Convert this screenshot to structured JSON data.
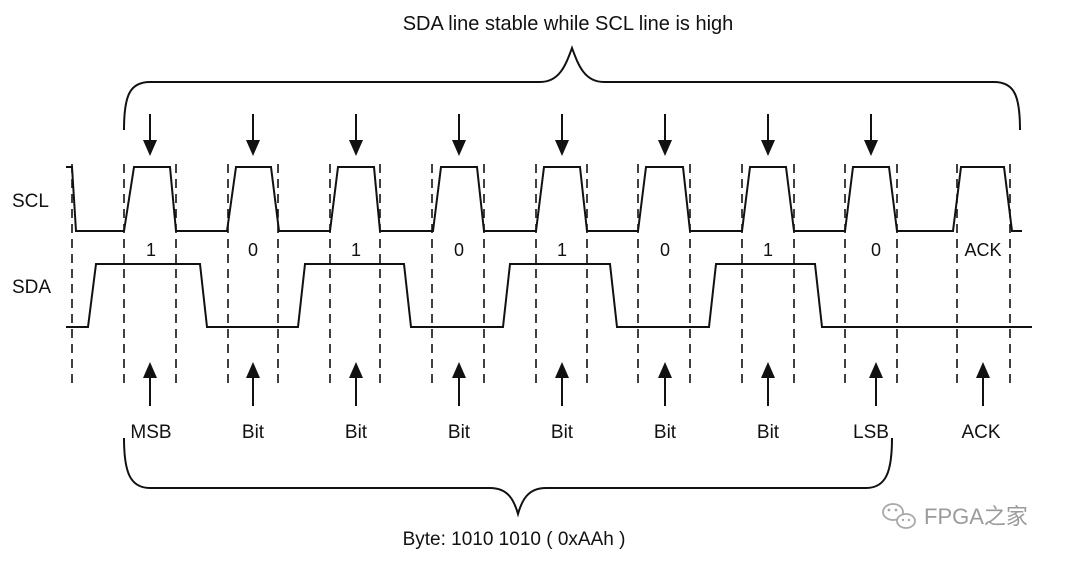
{
  "title": "SDA line stable while SCL line is high",
  "signals": {
    "scl": "SCL",
    "sda": "SDA"
  },
  "bits": [
    {
      "value": "1",
      "label": "MSB"
    },
    {
      "value": "0",
      "label": "Bit"
    },
    {
      "value": "1",
      "label": "Bit"
    },
    {
      "value": "0",
      "label": "Bit"
    },
    {
      "value": "1",
      "label": "Bit"
    },
    {
      "value": "0",
      "label": "Bit"
    },
    {
      "value": "1",
      "label": "Bit"
    },
    {
      "value": "0",
      "label": "LSB"
    },
    {
      "value": "ACK",
      "label": "ACK"
    }
  ],
  "byte_caption": "Byte: 1010 1010 ( 0xAAh )",
  "watermark": "FPGA之家"
}
